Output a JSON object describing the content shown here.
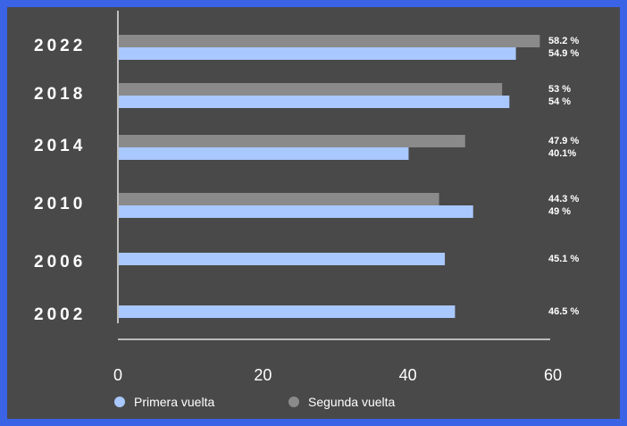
{
  "chart_data": {
    "type": "bar",
    "orientation": "horizontal",
    "categories": [
      "2022",
      "2018",
      "2014",
      "2010",
      "2006",
      "2002"
    ],
    "series": [
      {
        "name": "Segunda vuelta",
        "color": "#8a8a8a",
        "values": [
          58.2,
          53,
          47.9,
          44.3,
          null,
          null
        ],
        "labels": [
          "58.2 %",
          "53 %",
          "47.9 %",
          "44.3 %",
          "",
          ""
        ]
      },
      {
        "name": "Primera vuelta",
        "color": "#a9c8ff",
        "values": [
          54.9,
          54,
          40.1,
          49,
          45.1,
          46.5
        ],
        "labels": [
          "54.9 %",
          "54 %",
          "40.1%",
          "49 %",
          "45.1 %",
          "46.5 %"
        ]
      }
    ],
    "xlim": [
      0,
      60
    ],
    "xticks": [
      "0",
      "20",
      "40",
      "60"
    ],
    "grid": false,
    "legend_position": "bottom-left",
    "colors": {
      "background": "#494949",
      "page": "#3b63e6",
      "axis": "#ffffff",
      "text": "#ffffff"
    }
  }
}
